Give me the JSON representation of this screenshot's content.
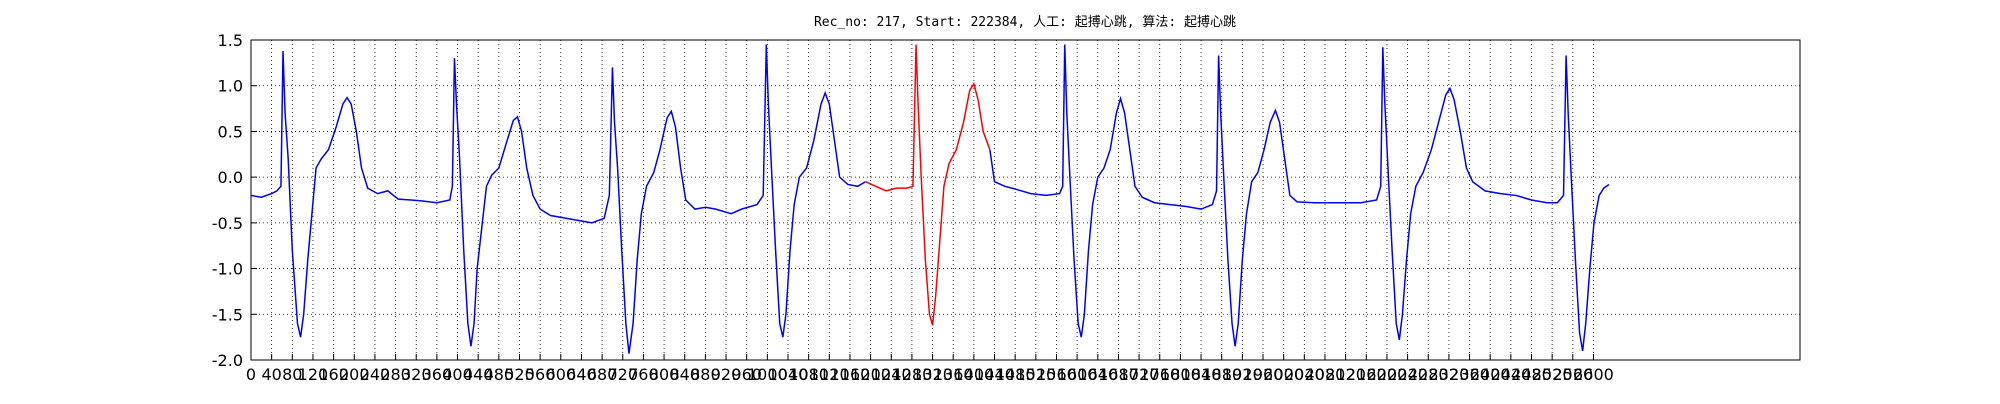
{
  "chart_data": {
    "type": "line",
    "title": "Rec_no: 217, Start: 222384, 人工: 起搏心跳, 算法: 起搏心跳",
    "xlim": [
      0,
      3000
    ],
    "ylim": [
      -2.0,
      1.5
    ],
    "xticks": [
      0,
      40,
      80,
      120,
      160,
      200,
      240,
      280,
      320,
      360,
      400,
      440,
      480,
      520,
      560,
      600,
      640,
      680,
      720,
      760,
      800,
      840,
      880,
      920,
      960,
      1000,
      1040,
      1080,
      1120,
      1160,
      1200,
      1240,
      1280,
      1320,
      1360,
      1400,
      1440,
      1480,
      1520,
      1560,
      1600,
      1640,
      1680,
      1720,
      1760,
      1800,
      1840,
      1880,
      1920,
      1960,
      2000,
      2040,
      2080,
      2120,
      2160,
      2200,
      2240,
      2280,
      2320,
      2360,
      2400,
      2440,
      2480,
      2520,
      2560,
      2600
    ],
    "yticks": [
      {
        "value": -2.0,
        "label": "-2.0"
      },
      -1.5,
      {
        "value": -1.0,
        "label": "-1.0"
      },
      -0.5,
      {
        "value": 0.0,
        "label": "0.0"
      },
      0.5,
      {
        "value": 1.0,
        "label": "1.0"
      },
      1.5
    ],
    "grid": true,
    "series": [
      {
        "color": "#0000ff",
        "x": [
          0,
          20,
          40,
          50,
          58,
          62,
          66,
          72,
          80,
          90,
          96,
          102,
          110,
          118,
          126,
          136,
          150,
          165,
          178,
          186,
          194,
          204,
          214,
          226,
          245,
          265,
          285,
          310,
          330,
          360,
          385,
          390,
          394,
          398,
          404,
          412,
          420,
          426,
          432,
          438,
          446,
          456,
          466,
          480,
          496,
          508,
          516,
          524,
          534,
          546,
          560,
          580,
          610,
          640,
          660,
          684,
          694,
          700,
          704,
          710,
          718,
          726,
          732,
          740,
          748,
          756,
          766,
          780,
          792,
          806,
          814,
          822,
          832,
          842,
          860,
          880,
          900,
          930,
          950,
          980,
          992,
          998,
          1002,
          1008,
          1016,
          1024,
          1030,
          1036,
          1044,
          1052,
          1062,
          1076,
          1090,
          1104,
          1112,
          1120,
          1130,
          1140,
          1156,
          1175,
          1190,
          null,
          1431,
          1440,
          1460,
          1480,
          1510,
          1540,
          1566,
          1572,
          1576,
          1580,
          1586,
          1594,
          1602,
          1608,
          1614,
          1622,
          1630,
          1640,
          1652,
          1664,
          1676,
          1684,
          1692,
          1702,
          1712,
          1726,
          1750,
          1780,
          1810,
          1840,
          1862,
          1870,
          1874,
          1878,
          1884,
          1892,
          1900,
          1906,
          1912,
          1920,
          1928,
          1938,
          1950,
          1962,
          1974,
          1984,
          1992,
          2002,
          2012,
          2026,
          2060,
          2100,
          2150,
          2180,
          2188,
          2192,
          2196,
          2202,
          2210,
          2218,
          2224,
          2230,
          2238,
          2246,
          2256,
          2270,
          2286,
          2300,
          2314,
          2322,
          2330,
          2342,
          2354,
          2366,
          2390,
          2420,
          2450,
          2480,
          2510,
          2530,
          2542,
          2547,
          2551,
          2557,
          2565,
          2573,
          2579,
          2585,
          2593,
          2601,
          2611,
          2620,
          2630
        ],
        "values": [
          -0.2,
          -0.22,
          -0.18,
          -0.15,
          -0.1,
          1.38,
          0.7,
          0.2,
          -0.8,
          -1.6,
          -1.75,
          -1.5,
          -0.9,
          -0.4,
          0.1,
          0.2,
          0.3,
          0.55,
          0.8,
          0.87,
          0.8,
          0.5,
          0.1,
          -0.12,
          -0.18,
          -0.15,
          -0.24,
          -0.25,
          -0.26,
          -0.28,
          -0.25,
          -0.1,
          1.3,
          0.8,
          0.2,
          -0.8,
          -1.6,
          -1.85,
          -1.6,
          -1.0,
          -0.6,
          -0.1,
          0.02,
          0.1,
          0.4,
          0.62,
          0.66,
          0.5,
          0.1,
          -0.2,
          -0.35,
          -0.42,
          -0.45,
          -0.48,
          -0.5,
          -0.45,
          -0.2,
          1.2,
          0.6,
          0.1,
          -0.8,
          -1.6,
          -1.93,
          -1.6,
          -0.9,
          -0.4,
          -0.1,
          0.05,
          0.3,
          0.65,
          0.72,
          0.55,
          0.1,
          -0.25,
          -0.35,
          -0.33,
          -0.35,
          -0.4,
          -0.35,
          -0.3,
          -0.2,
          1.45,
          0.8,
          0.1,
          -0.8,
          -1.6,
          -1.75,
          -1.5,
          -0.8,
          -0.3,
          0.0,
          0.1,
          0.4,
          0.8,
          0.92,
          0.8,
          0.4,
          0.0,
          -0.08,
          -0.1,
          -0.05,
          null,
          0.3,
          -0.05,
          -0.1,
          -0.13,
          -0.18,
          -0.2,
          -0.18,
          -0.1,
          1.45,
          0.7,
          0.0,
          -0.9,
          -1.6,
          -1.75,
          -1.5,
          -0.8,
          -0.3,
          0.0,
          0.1,
          0.3,
          0.7,
          0.86,
          0.7,
          0.3,
          -0.1,
          -0.22,
          -0.28,
          -0.3,
          -0.32,
          -0.35,
          -0.3,
          -0.15,
          1.33,
          0.7,
          0.0,
          -0.9,
          -1.6,
          -1.85,
          -1.6,
          -0.9,
          -0.4,
          -0.05,
          0.05,
          0.3,
          0.6,
          0.73,
          0.6,
          0.2,
          -0.2,
          -0.27,
          -0.28,
          -0.28,
          -0.28,
          -0.25,
          -0.1,
          1.42,
          0.8,
          0.1,
          -0.8,
          -1.6,
          -1.78,
          -1.5,
          -0.9,
          -0.4,
          -0.1,
          0.05,
          0.3,
          0.6,
          0.9,
          0.97,
          0.85,
          0.5,
          0.1,
          -0.05,
          -0.15,
          -0.18,
          -0.2,
          -0.25,
          -0.28,
          -0.28,
          -0.2,
          1.33,
          0.7,
          0.0,
          -0.9,
          -1.7,
          -1.9,
          -1.6,
          -1.0,
          -0.5,
          -0.2,
          -0.12,
          -0.08
        ]
      },
      {
        "color": "#ff0000",
        "x": [
          1190,
          1210,
          1230,
          1250,
          1270,
          1282,
          1288,
          1292,
          1298,
          1306,
          1314,
          1320,
          1326,
          1334,
          1342,
          1352,
          1366,
          1380,
          1392,
          1400,
          1408,
          1418,
          1431
        ],
        "values": [
          -0.05,
          -0.1,
          -0.15,
          -0.12,
          -0.12,
          -0.1,
          1.45,
          0.8,
          0.0,
          -0.9,
          -1.5,
          -1.62,
          -1.3,
          -0.7,
          -0.1,
          0.15,
          0.3,
          0.6,
          0.95,
          1.02,
          0.85,
          0.5,
          0.3
        ]
      }
    ]
  }
}
